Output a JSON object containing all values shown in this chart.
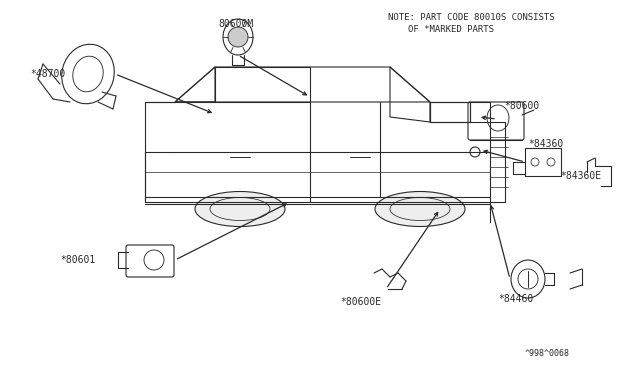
{
  "bg_color": "#ffffff",
  "line_color": "#2a2a2a",
  "text_color": "#2a2a2a",
  "note_line1": "NOTE: PART CODE 80010S CONSISTS",
  "note_line2": "OF *MARKED PARTS",
  "diagram_id": "^998^0068",
  "fig_w": 6.4,
  "fig_h": 3.72,
  "dpi": 100
}
